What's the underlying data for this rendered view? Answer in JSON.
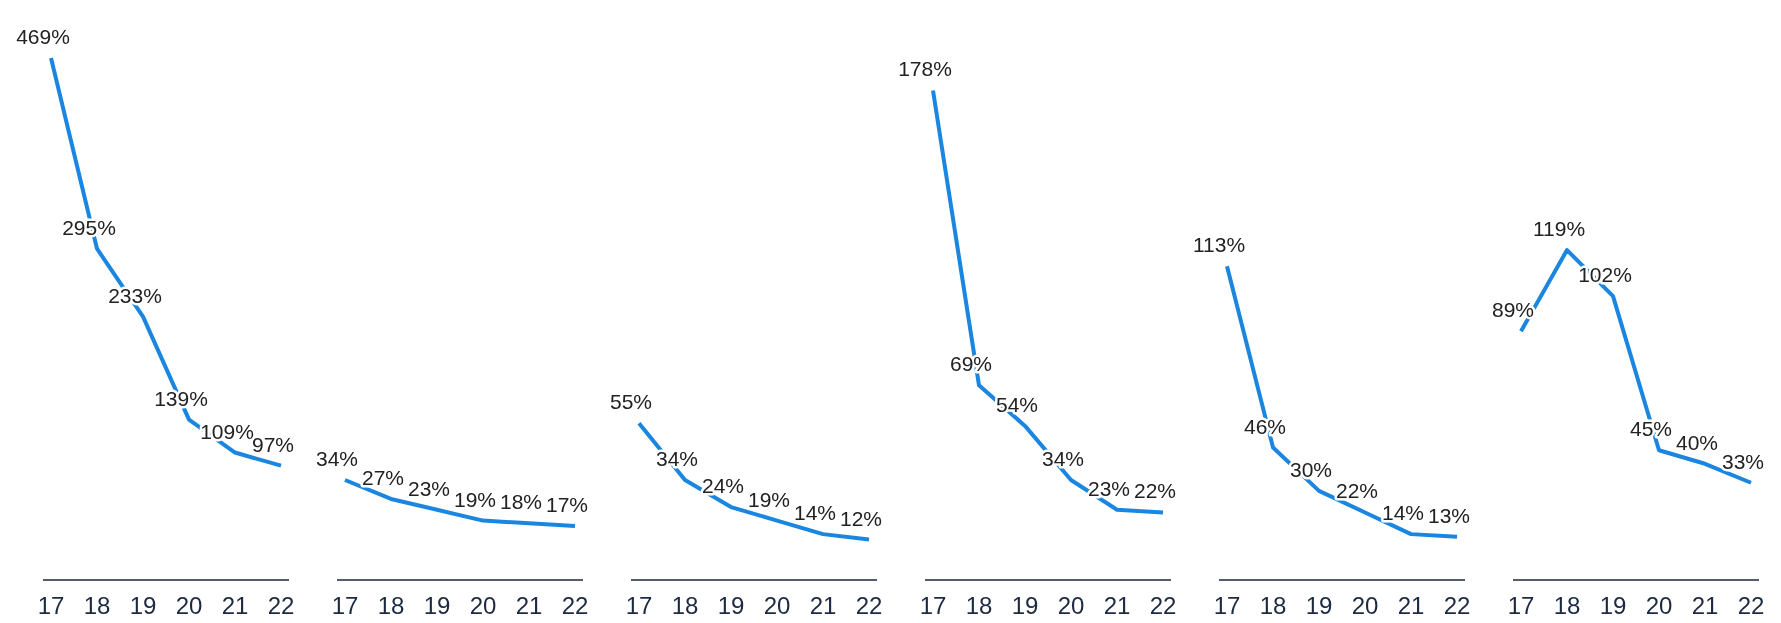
{
  "chart_data": [
    {
      "type": "line",
      "categories": [
        "17",
        "18",
        "19",
        "20",
        "21",
        "22"
      ],
      "values": [
        469,
        295,
        233,
        139,
        109,
        97
      ],
      "value_labels": [
        "469%",
        "295%",
        "233%",
        "139%",
        "109%",
        "97%"
      ],
      "color": "#1a86e0",
      "marker": "none"
    },
    {
      "type": "line",
      "categories": [
        "17",
        "18",
        "19",
        "20",
        "21",
        "22"
      ],
      "values": [
        34,
        27,
        23,
        19,
        18,
        17
      ],
      "value_labels": [
        "34%",
        "27%",
        "23%",
        "19%",
        "18%",
        "17%"
      ],
      "color": "#1a86e0",
      "marker": "none"
    },
    {
      "type": "line",
      "categories": [
        "17",
        "18",
        "19",
        "20",
        "21",
        "22"
      ],
      "values": [
        55,
        34,
        24,
        19,
        14,
        12
      ],
      "value_labels": [
        "55%",
        "34%",
        "24%",
        "19%",
        "14%",
        "12%"
      ],
      "color": "#1a86e0",
      "marker": "none"
    },
    {
      "type": "line",
      "categories": [
        "17",
        "18",
        "19",
        "20",
        "21",
        "22"
      ],
      "values": [
        178,
        69,
        54,
        34,
        23,
        22
      ],
      "value_labels": [
        "178%",
        "69%",
        "54%",
        "34%",
        "23%",
        "22%"
      ],
      "color": "#1a86e0",
      "marker": "none"
    },
    {
      "type": "line",
      "categories": [
        "17",
        "18",
        "19",
        "20",
        "21",
        "22"
      ],
      "values": [
        113,
        46,
        30,
        22,
        14,
        13
      ],
      "value_labels": [
        "113%",
        "46%",
        "30%",
        "22%",
        "14%",
        "13%"
      ],
      "color": "#1a86e0",
      "marker": "none"
    },
    {
      "type": "line",
      "categories": [
        "17",
        "18",
        "19",
        "20",
        "21",
        "22"
      ],
      "values": [
        89,
        119,
        102,
        45,
        40,
        33
      ],
      "value_labels": [
        "89%",
        "119%",
        "102%",
        "45%",
        "40%",
        "33%"
      ],
      "color": "#1a86e0",
      "marker": "none"
    }
  ]
}
